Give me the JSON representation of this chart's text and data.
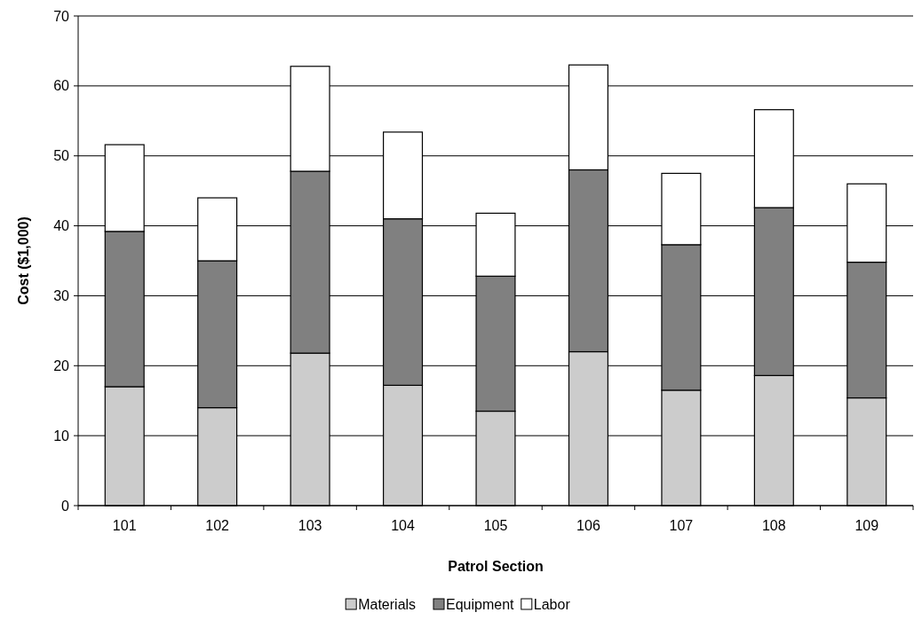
{
  "chart_data": {
    "type": "bar",
    "stacked": true,
    "xlabel": "Patrol Section",
    "ylabel": "Cost ($1,000)",
    "categories": [
      "101",
      "102",
      "103",
      "104",
      "105",
      "106",
      "107",
      "108",
      "109"
    ],
    "series": [
      {
        "name": "Materials",
        "color": "#cccccc",
        "values": [
          17,
          14,
          21.8,
          17.2,
          13.5,
          22,
          16.5,
          18.6,
          15.4
        ]
      },
      {
        "name": "Equipment",
        "color": "#808080",
        "values": [
          22.2,
          21,
          26,
          23.8,
          19.3,
          26,
          20.8,
          24,
          19.4
        ]
      },
      {
        "name": "Labor",
        "color": "#ffffff",
        "values": [
          12.4,
          9,
          15,
          12.4,
          9,
          15,
          10.2,
          14,
          11.2
        ]
      }
    ],
    "ylim": [
      0,
      70
    ],
    "yticks": [
      0,
      10,
      20,
      30,
      40,
      50,
      60,
      70
    ],
    "grid": "y",
    "legend": "bottom"
  }
}
